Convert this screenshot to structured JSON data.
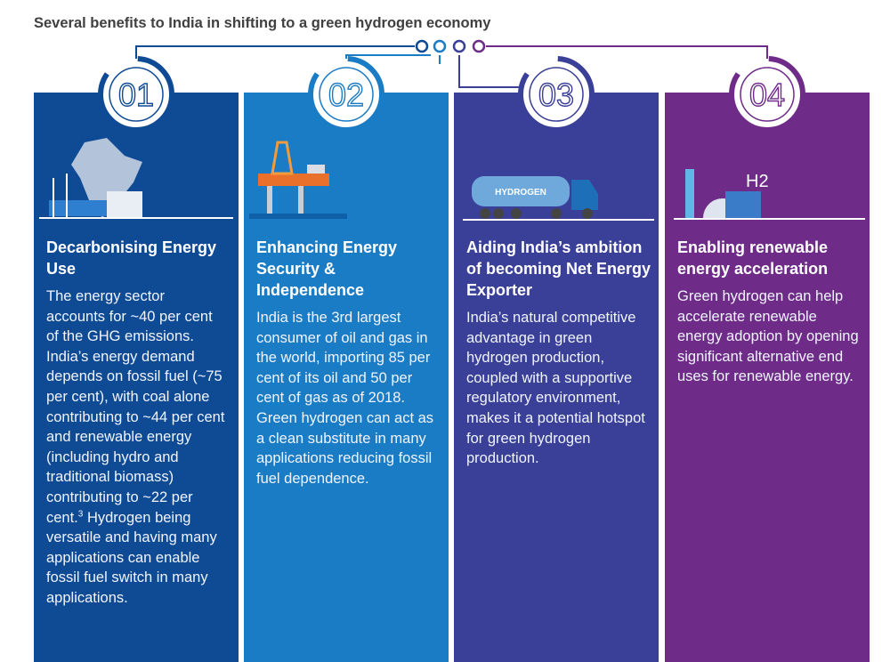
{
  "header": {
    "title": "Several benefits to India in shifting to a green hydrogen economy"
  },
  "cards": [
    {
      "number": "01",
      "heading": "Decarbonising Energy Use",
      "body": "The energy sector accounts for ~40 per cent of the GHG emissions. India’s energy demand depends on fossil fuel (~75 per cent), with coal alone contributing to ~44 per cent and renewable energy (including hydro and traditional biomass) contributing to ~22 per cent.",
      "footnote": "3",
      "body_continued": "Hydrogen being versatile and having many applications can enable fossil fuel switch in many applications."
    },
    {
      "number": "02",
      "heading": "Enhancing Energy Security & Independence",
      "body": "India is the 3rd largest consumer of oil and gas in the world, importing 85 per cent of its oil and 50 per cent of gas as of 2018. Green hydrogen can act as a clean substitute in many applications reducing fossil fuel dependence."
    },
    {
      "number": "03",
      "heading": "Aiding India’s ambition of becoming Net Energy Exporter",
      "body": "India’s natural competitive advantage in green hydrogen production, coupled with a supportive regulatory environment, makes it a potential hotspot for green hydrogen production.",
      "image_label": "HYDROGEN"
    },
    {
      "number": "04",
      "heading": "Enabling renewable energy acceleration",
      "body": "Green hydrogen can help accelerate renewable energy adoption by opening significant alternative end uses for renewable energy.",
      "image_label": "H2"
    }
  ]
}
